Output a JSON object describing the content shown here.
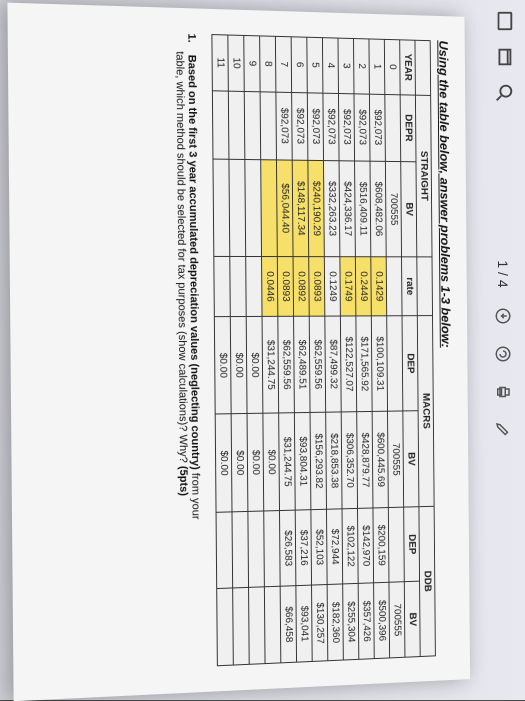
{
  "toolbar": {
    "page_indicator": "1 / 4",
    "icons": [
      "download-icon",
      "rotate-icon",
      "print-icon",
      "edit-icon"
    ],
    "left_icons": [
      "screenshot-icon",
      "window-icon",
      "search-icon"
    ]
  },
  "heading": "Using the table below, answer problems 1-3 below:",
  "table": {
    "group_headers": [
      {
        "label": "STRAIGHT",
        "colspan": 2
      },
      {
        "label": "",
        "colspan": 1
      },
      {
        "label": "MACRS",
        "colspan": 2
      },
      {
        "label": "DDB",
        "colspan": 2
      }
    ],
    "sub_headers": [
      "YEAR",
      "DEPR",
      "BV",
      "rate",
      "DEP",
      "BV",
      "DEP",
      "BV"
    ],
    "rows": [
      {
        "year": "0",
        "depr": "",
        "bv": "700555",
        "rate": "",
        "dep": "",
        "bv2": "700555",
        "dep2": "",
        "bv3": "700555",
        "hl": []
      },
      {
        "year": "1",
        "depr": "$92,073",
        "bv": "$608,482.06",
        "rate": "0.1429",
        "dep": "$100,109.31",
        "bv2": "$600,445.69",
        "dep2": "$200,159",
        "bv3": "$500,396",
        "hl": [
          3
        ]
      },
      {
        "year": "2",
        "depr": "$92,073",
        "bv": "$516,409.11",
        "rate": "0.2449",
        "dep": "$171,565.92",
        "bv2": "$428,879.77",
        "dep2": "$142,970",
        "bv3": "$357,426",
        "hl": [
          3
        ]
      },
      {
        "year": "3",
        "depr": "$92,073",
        "bv": "$424,336.17",
        "rate": "0.1749",
        "dep": "$122,527.07",
        "bv2": "$306,352.70",
        "dep2": "$102,122",
        "bv3": "$255,304",
        "hl": [
          3
        ]
      },
      {
        "year": "4",
        "depr": "$92,073",
        "bv": "$332,263.23",
        "rate": "0.1249",
        "dep": "$87,499.32",
        "bv2": "$218,853.38",
        "dep2": "$72,944",
        "bv3": "$182,360",
        "hl": []
      },
      {
        "year": "5",
        "depr": "$92,073",
        "bv": "$240,190.29",
        "rate": "0.0893",
        "dep": "$62,559.56",
        "bv2": "$156,293.82",
        "dep2": "$52,103",
        "bv3": "$130,257",
        "hl": [
          2,
          3
        ]
      },
      {
        "year": "6",
        "depr": "$92,073",
        "bv": "$148,117.34",
        "rate": "0.0892",
        "dep": "$62,489.51",
        "bv2": "$93,804.31",
        "dep2": "$37,216",
        "bv3": "$93,041",
        "hl": [
          2,
          3
        ]
      },
      {
        "year": "7",
        "depr": "$92,073",
        "bv": "$56,044.40",
        "rate": "0.0893",
        "dep": "$62,559.56",
        "bv2": "$31,244.75",
        "dep2": "$26,583",
        "bv3": "$66,458",
        "hl": [
          2,
          3
        ]
      },
      {
        "year": "8",
        "depr": "",
        "bv": "",
        "rate": "0.0446",
        "dep": "$31,244.75",
        "bv2": "$0.00",
        "dep2": "",
        "bv3": "",
        "hl": [
          2,
          3
        ]
      },
      {
        "year": "9",
        "depr": "",
        "bv": "",
        "rate": "",
        "dep": "$0.00",
        "bv2": "$0.00",
        "dep2": "",
        "bv3": "",
        "hl": []
      },
      {
        "year": "10",
        "depr": "",
        "bv": "",
        "rate": "",
        "dep": "$0.00",
        "bv2": "$0.00",
        "dep2": "",
        "bv3": "",
        "hl": []
      },
      {
        "year": "11",
        "depr": "",
        "bv": "",
        "rate": "",
        "dep": "$0.00",
        "bv2": "$0.00",
        "dep2": "",
        "bv3": "",
        "hl": []
      }
    ]
  },
  "question": {
    "num": "1.",
    "line1_bold": "Based on the first 3 year accumulated depreciation values (neglecting country)",
    "line1_rest": " from your",
    "line2": "table, which method should be selected for tax purposes (show calculations)? Why? ",
    "line2_bold": "(5pts)"
  },
  "colors": {
    "highlight": "#f7e06a",
    "border": "#333333",
    "paper": "#f5f5f5"
  },
  "typography": {
    "heading_fontsize": 13,
    "table_fontsize": 10,
    "question_fontsize": 11
  }
}
